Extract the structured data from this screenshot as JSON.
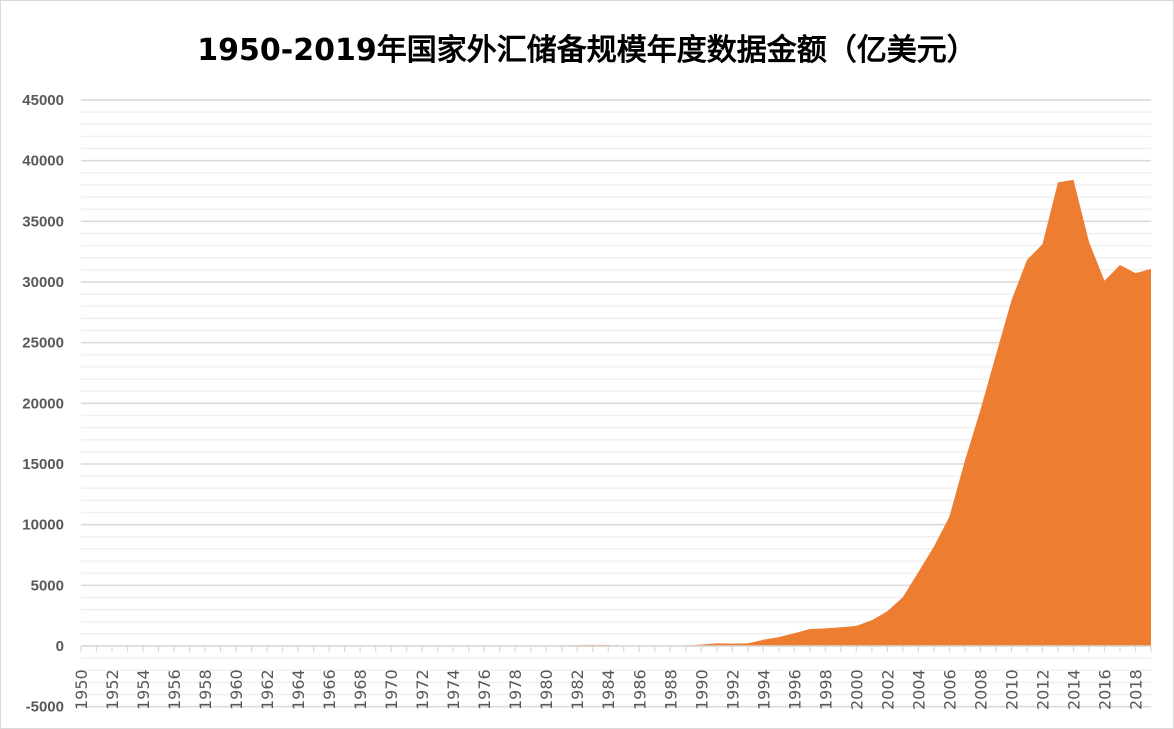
{
  "chart_data": {
    "type": "area",
    "title": "1950-2019年国家外汇储备规模年度数据金额（亿美元）",
    "xlabel": "",
    "ylabel": "",
    "ylim": [
      -5000,
      45000
    ],
    "y_ticks": [
      -5000,
      0,
      5000,
      10000,
      15000,
      20000,
      25000,
      30000,
      35000,
      40000,
      45000
    ],
    "x_tick_labels_every": 2,
    "grid": "major and minor horizontal",
    "legend": "none",
    "color": "#ED7D31",
    "x": [
      1950,
      1951,
      1952,
      1953,
      1954,
      1955,
      1956,
      1957,
      1958,
      1959,
      1960,
      1961,
      1962,
      1963,
      1964,
      1965,
      1966,
      1967,
      1968,
      1969,
      1970,
      1971,
      1972,
      1973,
      1974,
      1975,
      1976,
      1977,
      1978,
      1979,
      1980,
      1981,
      1982,
      1983,
      1984,
      1985,
      1986,
      1987,
      1988,
      1989,
      1990,
      1991,
      1992,
      1993,
      1994,
      1995,
      1996,
      1997,
      1998,
      1999,
      2000,
      2001,
      2002,
      2003,
      2004,
      2005,
      2006,
      2007,
      2008,
      2009,
      2010,
      2011,
      2012,
      2013,
      2014,
      2015,
      2016,
      2017,
      2018,
      2019
    ],
    "values": [
      1.57,
      0.45,
      1.08,
      0.9,
      0.88,
      1.8,
      1.17,
      1.23,
      0.7,
      1.05,
      0.46,
      0.89,
      0.81,
      1.19,
      1.66,
      1.05,
      2.11,
      2.15,
      2.46,
      4.83,
      0.88,
      0.37,
      2.36,
      -0.81,
      0,
      1.83,
      5.81,
      9.52,
      1.67,
      8.4,
      -12.96,
      27.08,
      69.86,
      89.01,
      82.2,
      26.44,
      20.72,
      29.23,
      33.72,
      55.5,
      110.93,
      217.12,
      194.43,
      211.99,
      516.2,
      735.97,
      1050.29,
      1398.9,
      1449.59,
      1546.75,
      1655.74,
      2121.65,
      2864.07,
      4032.51,
      6099.32,
      8188.72,
      10663.44,
      15282.49,
      19460.3,
      23991.52,
      28473.38,
      31811.48,
      33115.89,
      38213.15,
      38430.18,
      33303.62,
      30105.17,
      31399.49,
      30727.12,
      31079.24
    ]
  }
}
